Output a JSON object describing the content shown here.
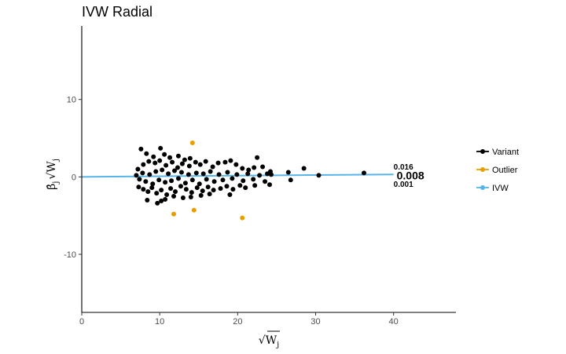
{
  "chart_data": {
    "type": "scatter",
    "title": "IVW Radial",
    "xlabel": "√W_j",
    "ylabel": "β̂_j √W_j",
    "xlim": [
      0,
      48
    ],
    "ylim": [
      -17.5,
      19.5
    ],
    "x_ticks": [
      0,
      10,
      20,
      30,
      40
    ],
    "y_ticks": [
      -10,
      0,
      10
    ],
    "x_tick_labels": [
      "0",
      "10",
      "20",
      "30",
      "40"
    ],
    "y_tick_labels": [
      "-10",
      "0",
      "10"
    ],
    "grid": false,
    "legend_position": "right",
    "colors": {
      "Variant": "#000000",
      "Outlier": "#E69F00",
      "IVW": "#56B4E9"
    },
    "series": [
      {
        "name": "Variant",
        "points": [
          [
            7.6,
            3.6
          ],
          [
            8.3,
            3.0
          ],
          [
            9.2,
            2.6
          ],
          [
            10.1,
            3.7
          ],
          [
            10.6,
            2.9
          ],
          [
            11.3,
            2.5
          ],
          [
            12.4,
            2.7
          ],
          [
            13.2,
            2.2
          ],
          [
            13.9,
            2.4
          ],
          [
            7.2,
            1.0
          ],
          [
            7.9,
            1.6
          ],
          [
            8.6,
            2.0
          ],
          [
            9.4,
            1.8
          ],
          [
            10.0,
            2.1
          ],
          [
            10.8,
            1.5
          ],
          [
            11.6,
            1.9
          ],
          [
            12.3,
            1.2
          ],
          [
            12.9,
            1.7
          ],
          [
            13.8,
            1.4
          ],
          [
            14.6,
            1.9
          ],
          [
            15.2,
            1.6
          ],
          [
            15.9,
            2.0
          ],
          [
            16.8,
            1.3
          ],
          [
            17.5,
            1.8
          ],
          [
            18.4,
            1.9
          ],
          [
            19.1,
            2.1
          ],
          [
            19.8,
            1.6
          ],
          [
            20.6,
            1.1
          ],
          [
            21.4,
            0.9
          ],
          [
            22.1,
            1.2
          ],
          [
            22.5,
            2.5
          ],
          [
            23.2,
            1.3
          ],
          [
            23.8,
            0.4
          ],
          [
            24.2,
            0.7
          ],
          [
            26.5,
            0.6
          ],
          [
            28.5,
            1.1
          ],
          [
            30.4,
            0.2
          ],
          [
            36.2,
            0.5
          ],
          [
            7.0,
            0.2
          ],
          [
            7.4,
            -0.3
          ],
          [
            7.8,
            0.5
          ],
          [
            8.2,
            -0.6
          ],
          [
            8.7,
            0.3
          ],
          [
            9.1,
            -0.9
          ],
          [
            9.5,
            0.7
          ],
          [
            9.9,
            -0.4
          ],
          [
            10.3,
            0.9
          ],
          [
            10.7,
            -0.7
          ],
          [
            11.1,
            0.4
          ],
          [
            11.5,
            -0.5
          ],
          [
            11.9,
            0.8
          ],
          [
            12.4,
            -0.2
          ],
          [
            12.8,
            0.6
          ],
          [
            13.3,
            -0.8
          ],
          [
            13.7,
            0.3
          ],
          [
            14.2,
            -0.4
          ],
          [
            14.7,
            0.5
          ],
          [
            15.1,
            -0.9
          ],
          [
            15.6,
            0.4
          ],
          [
            16.0,
            -0.3
          ],
          [
            16.5,
            0.7
          ],
          [
            17.0,
            -0.6
          ],
          [
            17.6,
            0.3
          ],
          [
            18.1,
            -0.4
          ],
          [
            18.7,
            0.6
          ],
          [
            19.3,
            -0.2
          ],
          [
            19.9,
            0.3
          ],
          [
            20.7,
            -0.5
          ],
          [
            21.3,
            0.4
          ],
          [
            22.0,
            -0.3
          ],
          [
            22.8,
            0.2
          ],
          [
            23.5,
            -0.6
          ],
          [
            24.3,
            0.3
          ],
          [
            26.8,
            -0.4
          ],
          [
            7.3,
            -1.3
          ],
          [
            7.9,
            -1.6
          ],
          [
            8.5,
            -1.9
          ],
          [
            9.0,
            -1.4
          ],
          [
            9.6,
            -2.1
          ],
          [
            10.2,
            -1.7
          ],
          [
            10.9,
            -2.3
          ],
          [
            11.4,
            -1.5
          ],
          [
            12.0,
            -1.9
          ],
          [
            12.7,
            -1.2
          ],
          [
            13.4,
            -1.6
          ],
          [
            14.1,
            -2.0
          ],
          [
            14.8,
            -1.4
          ],
          [
            15.5,
            -1.8
          ],
          [
            16.2,
            -1.3
          ],
          [
            16.9,
            -1.7
          ],
          [
            17.8,
            -1.5
          ],
          [
            18.6,
            -1.2
          ],
          [
            19.4,
            -1.6
          ],
          [
            20.3,
            -1.1
          ],
          [
            21.0,
            -1.4
          ],
          [
            22.2,
            -1.1
          ],
          [
            24.1,
            -1.0
          ],
          [
            8.4,
            -3.0
          ],
          [
            9.7,
            -3.4
          ],
          [
            10.2,
            -3.1
          ],
          [
            10.7,
            -2.9
          ],
          [
            11.8,
            -2.5
          ],
          [
            13.0,
            -2.7
          ],
          [
            14.0,
            -2.6
          ],
          [
            15.3,
            -2.4
          ],
          [
            16.4,
            -2.2
          ],
          [
            19.0,
            -2.3
          ]
        ]
      },
      {
        "name": "Outlier",
        "points": [
          [
            14.2,
            4.4
          ],
          [
            11.8,
            -4.8
          ],
          [
            14.4,
            -4.3
          ],
          [
            20.6,
            -5.3
          ]
        ]
      }
    ],
    "ivw_line": {
      "name": "IVW",
      "x": [
        0,
        40
      ],
      "y": [
        0,
        0.32
      ]
    },
    "annotations": [
      {
        "text": "0.016",
        "x": 40,
        "y": 1.35,
        "size": "small"
      },
      {
        "text": "0.008",
        "x": 40.4,
        "y": 0.2,
        "size": "large"
      },
      {
        "text": "0.001",
        "x": 40,
        "y": -0.85,
        "size": "small"
      }
    ],
    "legend": [
      {
        "name": "Variant",
        "label": "Variant"
      },
      {
        "name": "Outlier",
        "label": "Outlier"
      },
      {
        "name": "IVW",
        "label": "IVW"
      }
    ]
  }
}
